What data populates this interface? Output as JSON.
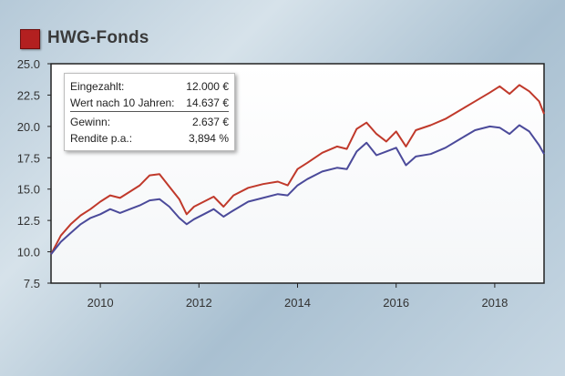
{
  "header": {
    "title": "HWG-Fonds"
  },
  "colors": {
    "line_a": "#c0392b",
    "line_b": "#4b4a9a",
    "brand_square": "#b32020"
  },
  "info": {
    "rows": [
      {
        "label": "Eingezahlt:",
        "value": "12.000 €"
      },
      {
        "label": "Wert nach 10 Jahren:",
        "value": "14.637 €"
      },
      {
        "label": "Gewinn:",
        "value": "2.637 €"
      },
      {
        "label": "Rendite p.a.:",
        "value": "3,894 %"
      }
    ]
  },
  "chart_data": {
    "type": "line",
    "title": "HWG-Fonds",
    "xlabel": "",
    "ylabel": "",
    "xlim": [
      2009.0,
      2019.0
    ],
    "ylim": [
      7.5,
      25.0
    ],
    "x_ticks": [
      2010,
      2012,
      2014,
      2016,
      2018
    ],
    "y_ticks": [
      "7.5",
      "10.0",
      "12.5",
      "15.0",
      "17.5",
      "20.0",
      "22.5",
      "25.0"
    ],
    "grid": false,
    "series": [
      {
        "color": "#c0392b",
        "x": [
          2009.0,
          2009.2,
          2009.4,
          2009.6,
          2009.8,
          2010.0,
          2010.2,
          2010.4,
          2010.6,
          2010.8,
          2011.0,
          2011.2,
          2011.4,
          2011.6,
          2011.75,
          2011.9,
          2012.1,
          2012.3,
          2012.5,
          2012.7,
          2013.0,
          2013.3,
          2013.6,
          2013.8,
          2014.0,
          2014.2,
          2014.5,
          2014.8,
          2015.0,
          2015.2,
          2015.4,
          2015.6,
          2015.8,
          2016.0,
          2016.2,
          2016.4,
          2016.7,
          2017.0,
          2017.3,
          2017.6,
          2017.9,
          2018.1,
          2018.3,
          2018.5,
          2018.7,
          2018.9,
          2019.0
        ],
        "values": [
          9.8,
          11.3,
          12.2,
          12.9,
          13.4,
          14.0,
          14.5,
          14.3,
          14.8,
          15.3,
          16.1,
          16.2,
          15.2,
          14.2,
          13.0,
          13.6,
          14.0,
          14.4,
          13.6,
          14.5,
          15.1,
          15.4,
          15.6,
          15.3,
          16.6,
          17.1,
          17.9,
          18.4,
          18.2,
          19.8,
          20.3,
          19.4,
          18.8,
          19.6,
          18.4,
          19.7,
          20.1,
          20.6,
          21.3,
          22.0,
          22.7,
          23.2,
          22.6,
          23.3,
          22.8,
          22.0,
          21.0
        ]
      },
      {
        "color": "#4b4a9a",
        "x": [
          2009.0,
          2009.2,
          2009.4,
          2009.6,
          2009.8,
          2010.0,
          2010.2,
          2010.4,
          2010.6,
          2010.8,
          2011.0,
          2011.2,
          2011.4,
          2011.6,
          2011.75,
          2011.9,
          2012.1,
          2012.3,
          2012.5,
          2012.7,
          2013.0,
          2013.3,
          2013.6,
          2013.8,
          2014.0,
          2014.2,
          2014.5,
          2014.8,
          2015.0,
          2015.2,
          2015.4,
          2015.6,
          2015.8,
          2016.0,
          2016.2,
          2016.4,
          2016.7,
          2017.0,
          2017.3,
          2017.6,
          2017.9,
          2018.1,
          2018.3,
          2018.5,
          2018.7,
          2018.9,
          2019.0
        ],
        "values": [
          9.8,
          10.8,
          11.5,
          12.2,
          12.7,
          13.0,
          13.4,
          13.1,
          13.4,
          13.7,
          14.1,
          14.2,
          13.6,
          12.7,
          12.2,
          12.6,
          13.0,
          13.4,
          12.8,
          13.3,
          14.0,
          14.3,
          14.6,
          14.5,
          15.3,
          15.8,
          16.4,
          16.7,
          16.6,
          18.0,
          18.7,
          17.7,
          18.0,
          18.3,
          16.9,
          17.6,
          17.8,
          18.3,
          19.0,
          19.7,
          20.0,
          19.9,
          19.4,
          20.1,
          19.6,
          18.5,
          17.8
        ]
      }
    ]
  }
}
